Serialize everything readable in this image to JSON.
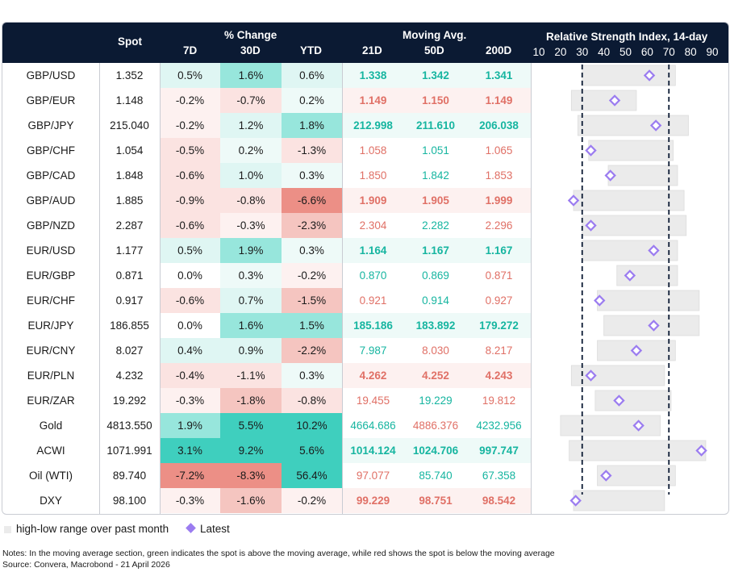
{
  "headers": {
    "spot": "Spot",
    "pct_change": "% Change",
    "d7": "7D",
    "d30": "30D",
    "ytd": "YTD",
    "moving_avg": "Moving Avg.",
    "ma21": "21D",
    "ma50": "50D",
    "ma200": "200D",
    "rsi_title": "Relative Strength Index, 14-day"
  },
  "colors": {
    "header_bg": "#0b1a33",
    "green_strong": "#3fcfbe",
    "green_mid": "#97e6dc",
    "green_light": "#dff6f3",
    "green_faint": "#eefaf8",
    "red_strong": "#ec8f86",
    "red_mid": "#f5c5c0",
    "red_light": "#fbe3e1",
    "red_faint": "#fdf1f0",
    "ma_green": "#16b5a0",
    "ma_red": "#e07066",
    "range_bar": "#ebebeb",
    "latest_marker": "#9b7cf0"
  },
  "chart_data": {
    "type": "table",
    "title": "Relative Strength Index, 14-day",
    "rsi_axis": {
      "min": 10,
      "max": 90,
      "ticks": [
        10,
        20,
        30,
        40,
        50,
        60,
        70,
        80,
        90
      ],
      "reference_lines": [
        30,
        70
      ]
    },
    "rows": [
      {
        "label": "GBP/USD",
        "spot": "1.352",
        "d7": "0.5%",
        "d30": "1.6%",
        "ytd": "0.6%",
        "ma21": "1.338",
        "ma50": "1.342",
        "ma200": "1.341",
        "ma21_bold": true,
        "ma50_bold": true,
        "ma200_bold": true,
        "ma21_above": true,
        "ma50_above": true,
        "ma200_above": true,
        "rsi": 61,
        "rsi_low": 30,
        "rsi_high": 73
      },
      {
        "label": "GBP/EUR",
        "spot": "1.148",
        "d7": "-0.2%",
        "d30": "-0.7%",
        "ytd": "0.2%",
        "ma21": "1.149",
        "ma50": "1.150",
        "ma200": "1.149",
        "ma21_bold": true,
        "ma50_bold": true,
        "ma200_bold": true,
        "ma21_above": false,
        "ma50_above": false,
        "ma200_above": false,
        "rsi": 45,
        "rsi_low": 25,
        "rsi_high": 55
      },
      {
        "label": "GBP/JPY",
        "spot": "215.040",
        "d7": "-0.2%",
        "d30": "1.2%",
        "ytd": "1.8%",
        "ma21": "212.998",
        "ma50": "211.610",
        "ma200": "206.038",
        "ma21_bold": true,
        "ma50_bold": true,
        "ma200_bold": true,
        "ma21_above": true,
        "ma50_above": true,
        "ma200_above": true,
        "rsi": 64,
        "rsi_low": 28,
        "rsi_high": 79
      },
      {
        "label": "GBP/CHF",
        "spot": "1.054",
        "d7": "-0.5%",
        "d30": "0.2%",
        "ytd": "-1.3%",
        "ma21": "1.058",
        "ma50": "1.051",
        "ma200": "1.065",
        "ma21_bold": false,
        "ma50_bold": false,
        "ma200_bold": false,
        "ma21_above": false,
        "ma50_above": true,
        "ma200_above": false,
        "rsi": 34,
        "rsi_low": 33,
        "rsi_high": 72
      },
      {
        "label": "GBP/CAD",
        "spot": "1.848",
        "d7": "-0.6%",
        "d30": "1.0%",
        "ytd": "0.3%",
        "ma21": "1.850",
        "ma50": "1.842",
        "ma200": "1.853",
        "ma21_bold": false,
        "ma50_bold": false,
        "ma200_bold": false,
        "ma21_above": false,
        "ma50_above": true,
        "ma200_above": false,
        "rsi": 43,
        "rsi_low": 42,
        "rsi_high": 74
      },
      {
        "label": "GBP/AUD",
        "spot": "1.885",
        "d7": "-0.9%",
        "d30": "-0.8%",
        "ytd": "-6.6%",
        "ma21": "1.909",
        "ma50": "1.905",
        "ma200": "1.999",
        "ma21_bold": true,
        "ma50_bold": true,
        "ma200_bold": true,
        "ma21_above": false,
        "ma50_above": false,
        "ma200_above": false,
        "rsi": 26,
        "rsi_low": 26,
        "rsi_high": 77
      },
      {
        "label": "GBP/NZD",
        "spot": "2.287",
        "d7": "-0.6%",
        "d30": "-0.3%",
        "ytd": "-2.3%",
        "ma21": "2.304",
        "ma50": "2.282",
        "ma200": "2.296",
        "ma21_bold": false,
        "ma50_bold": false,
        "ma200_bold": false,
        "ma21_above": false,
        "ma50_above": true,
        "ma200_above": false,
        "rsi": 34,
        "rsi_low": 30,
        "rsi_high": 78
      },
      {
        "label": "EUR/USD",
        "spot": "1.177",
        "d7": "0.5%",
        "d30": "1.9%",
        "ytd": "0.3%",
        "ma21": "1.164",
        "ma50": "1.167",
        "ma200": "1.167",
        "ma21_bold": true,
        "ma50_bold": true,
        "ma200_bold": true,
        "ma21_above": true,
        "ma50_above": true,
        "ma200_above": true,
        "rsi": 63,
        "rsi_low": 30,
        "rsi_high": 74
      },
      {
        "label": "EUR/GBP",
        "spot": "0.871",
        "d7": "0.0%",
        "d30": "0.3%",
        "ytd": "-0.2%",
        "ma21": "0.870",
        "ma50": "0.869",
        "ma200": "0.871",
        "ma21_bold": false,
        "ma50_bold": false,
        "ma200_bold": false,
        "ma21_above": true,
        "ma50_above": true,
        "ma200_above": false,
        "rsi": 52,
        "rsi_low": 46,
        "rsi_high": 74
      },
      {
        "label": "EUR/CHF",
        "spot": "0.917",
        "d7": "-0.6%",
        "d30": "0.7%",
        "ytd": "-1.5%",
        "ma21": "0.921",
        "ma50": "0.914",
        "ma200": "0.927",
        "ma21_bold": false,
        "ma50_bold": false,
        "ma200_bold": false,
        "ma21_above": false,
        "ma50_above": true,
        "ma200_above": false,
        "rsi": 38,
        "rsi_low": 37,
        "rsi_high": 84
      },
      {
        "label": "EUR/JPY",
        "spot": "186.855",
        "d7": "0.0%",
        "d30": "1.6%",
        "ytd": "1.5%",
        "ma21": "185.186",
        "ma50": "183.892",
        "ma200": "179.272",
        "ma21_bold": true,
        "ma50_bold": true,
        "ma200_bold": true,
        "ma21_above": true,
        "ma50_above": true,
        "ma200_above": true,
        "rsi": 63,
        "rsi_low": 40,
        "rsi_high": 84
      },
      {
        "label": "EUR/CNY",
        "spot": "8.027",
        "d7": "0.4%",
        "d30": "0.9%",
        "ytd": "-2.2%",
        "ma21": "7.987",
        "ma50": "8.030",
        "ma200": "8.217",
        "ma21_bold": false,
        "ma50_bold": false,
        "ma200_bold": false,
        "ma21_above": true,
        "ma50_above": false,
        "ma200_above": false,
        "rsi": 55,
        "rsi_low": 37,
        "rsi_high": 73
      },
      {
        "label": "EUR/PLN",
        "spot": "4.232",
        "d7": "-0.4%",
        "d30": "-1.1%",
        "ytd": "0.3%",
        "ma21": "4.262",
        "ma50": "4.252",
        "ma200": "4.243",
        "ma21_bold": true,
        "ma50_bold": true,
        "ma200_bold": true,
        "ma21_above": false,
        "ma50_above": false,
        "ma200_above": false,
        "rsi": 34,
        "rsi_low": 25,
        "rsi_high": 68
      },
      {
        "label": "EUR/ZAR",
        "spot": "19.292",
        "d7": "-0.3%",
        "d30": "-1.8%",
        "ytd": "-0.8%",
        "ma21": "19.455",
        "ma50": "19.229",
        "ma200": "19.812",
        "ma21_bold": false,
        "ma50_bold": false,
        "ma200_bold": false,
        "ma21_above": false,
        "ma50_above": true,
        "ma200_above": false,
        "rsi": 47,
        "rsi_low": 36,
        "rsi_high": 71
      },
      {
        "label": "Gold",
        "spot": "4813.550",
        "d7": "1.9%",
        "d30": "5.5%",
        "ytd": "10.2%",
        "ma21": "4664.686",
        "ma50": "4886.376",
        "ma200": "4232.956",
        "ma21_bold": false,
        "ma50_bold": false,
        "ma200_bold": false,
        "ma21_above": true,
        "ma50_above": false,
        "ma200_above": true,
        "rsi": 56,
        "rsi_low": 20,
        "rsi_high": 66
      },
      {
        "label": "ACWI",
        "spot": "1071.991",
        "d7": "3.1%",
        "d30": "9.2%",
        "ytd": "5.6%",
        "ma21": "1014.124",
        "ma50": "1024.706",
        "ma200": "997.747",
        "ma21_bold": true,
        "ma50_bold": true,
        "ma200_bold": true,
        "ma21_above": true,
        "ma50_above": true,
        "ma200_above": true,
        "rsi": 85,
        "rsi_low": 24,
        "rsi_high": 87
      },
      {
        "label": "Oil (WTI)",
        "spot": "89.740",
        "d7": "-7.2%",
        "d30": "-8.3%",
        "ytd": "56.4%",
        "ma21": "97.077",
        "ma50": "85.740",
        "ma200": "67.358",
        "ma21_bold": false,
        "ma50_bold": false,
        "ma200_bold": false,
        "ma21_above": false,
        "ma50_above": true,
        "ma200_above": true,
        "rsi": 41,
        "rsi_low": 37,
        "rsi_high": 73
      },
      {
        "label": "DXY",
        "spot": "98.100",
        "d7": "-0.3%",
        "d30": "-1.6%",
        "ytd": "-0.2%",
        "ma21": "99.229",
        "ma50": "98.751",
        "ma200": "98.542",
        "ma21_bold": true,
        "ma50_bold": true,
        "ma200_bold": true,
        "ma21_above": false,
        "ma50_above": false,
        "ma200_above": false,
        "rsi": 27,
        "rsi_low": 26,
        "rsi_high": 68
      }
    ]
  },
  "legend": {
    "range_label": "high-low range over past month",
    "latest_label": "Latest"
  },
  "notes": {
    "line1": "Notes: In the moving average section, green indicates the spot is above the moving average, while red shows the spot is below the moving average",
    "line2": "Source: Convera, Macrobond - 21 April 2026"
  }
}
